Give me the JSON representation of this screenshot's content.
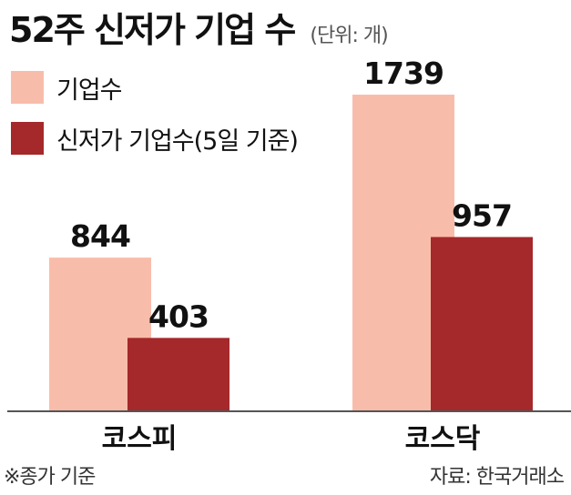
{
  "header": {
    "title": "52주 신저가 기업 수",
    "unit": "(단위: 개)"
  },
  "chart_data": {
    "type": "bar",
    "title": "52주 신저가 기업 수",
    "categories": [
      "코스피",
      "코스닥"
    ],
    "series": [
      {
        "name": "기업수",
        "values": [
          844,
          1739
        ],
        "color": "#f8bdaa"
      },
      {
        "name": "신저가 기업수(5일 기준)",
        "values": [
          403,
          957
        ],
        "color": "#a5282a"
      }
    ],
    "data_labels": [
      [
        "844",
        "1739"
      ],
      [
        "403",
        "957"
      ]
    ],
    "ylim": [
      0,
      2000
    ],
    "grid": false,
    "legend": "top-left"
  },
  "footer": {
    "note": "※종가 기준",
    "source": "자료: 한국거래소"
  }
}
